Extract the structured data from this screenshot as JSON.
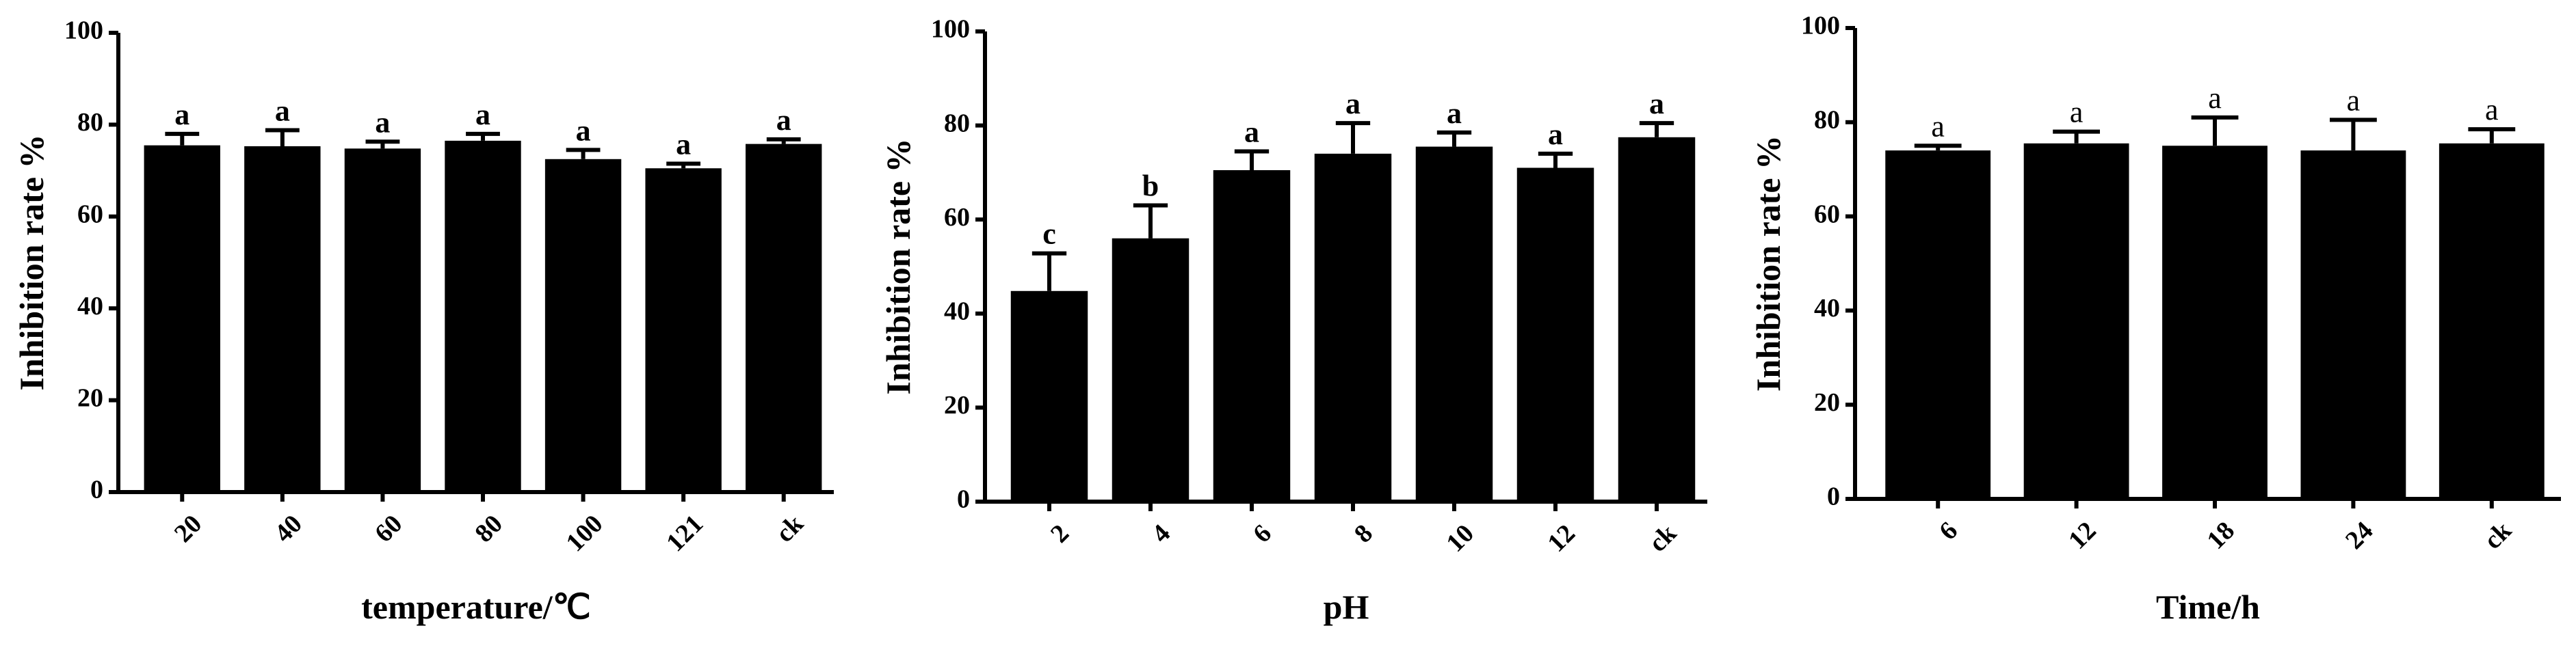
{
  "chart_data": [
    {
      "type": "bar",
      "xlabel": "temperature/℃",
      "ylabel": "Inhibition rate %",
      "color": "#000000",
      "categories": [
        "20",
        "40",
        "60",
        "80",
        "100",
        "121",
        "ck"
      ],
      "values": [
        75.5,
        75.3,
        74.8,
        76.5,
        72.5,
        70.5,
        75.8
      ],
      "errors": [
        2.5,
        3.5,
        1.5,
        1.5,
        2,
        1,
        1
      ],
      "letters": [
        "a",
        "a",
        "a",
        "a",
        "a",
        "a",
        "a"
      ],
      "ylim": [
        0,
        100
      ],
      "yticks": [
        0,
        20,
        40,
        60,
        80,
        100
      ]
    },
    {
      "type": "bar",
      "xlabel": "pH",
      "ylabel": "Inhibition rate %",
      "color": "#000000",
      "categories": [
        "2",
        "4",
        "6",
        "8",
        "10",
        "12",
        "ck"
      ],
      "values": [
        44.8,
        56,
        70.5,
        74,
        75.5,
        71,
        77.5
      ],
      "errors": [
        8,
        7,
        4,
        6.5,
        3,
        3,
        3
      ],
      "letters": [
        "c",
        "b",
        "a",
        "a",
        "a",
        "a",
        "a"
      ],
      "ylim": [
        0,
        100
      ],
      "yticks": [
        0,
        20,
        40,
        60,
        80,
        100
      ]
    },
    {
      "type": "bar",
      "xlabel": "Time/h",
      "ylabel": "Inhibition rate %",
      "color": "#000000",
      "categories": [
        "6",
        "12",
        "18",
        "24",
        "ck"
      ],
      "values": [
        74,
        75.5,
        75,
        74,
        75.5
      ],
      "errors": [
        1,
        2.5,
        6,
        6.5,
        3
      ],
      "letters": [
        "a",
        "a",
        "a",
        "a",
        "a"
      ],
      "ylim": [
        0,
        100
      ],
      "yticks": [
        0,
        20,
        40,
        60,
        80,
        100
      ]
    }
  ]
}
